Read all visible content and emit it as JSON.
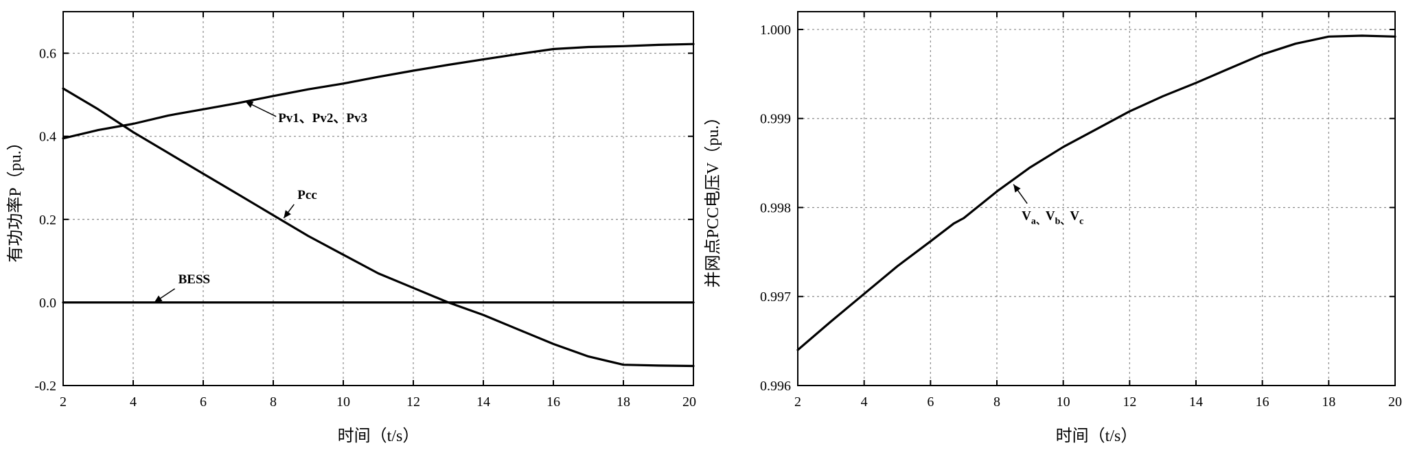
{
  "chart_data": [
    {
      "type": "line",
      "title": "",
      "xlabel": "时间（t/s）",
      "ylabel": "有功功率P（pu.）",
      "xlim": [
        2,
        20
      ],
      "ylim": [
        -0.2,
        0.7
      ],
      "xticks": [
        2,
        4,
        6,
        8,
        10,
        12,
        14,
        16,
        18,
        20
      ],
      "xtick_labels": [
        "2",
        "4",
        "6",
        "8",
        "10",
        "12",
        "14",
        "16",
        "18",
        "20"
      ],
      "yticks": [
        -0.2,
        0.0,
        0.2,
        0.4,
        0.6
      ],
      "ytick_labels": [
        "-0.2",
        "0.0",
        "0.2",
        "0.4",
        "0.6"
      ],
      "grid": true,
      "series": [
        {
          "name": "Pv1、Pv2、Pv3",
          "x": [
            2,
            3,
            4,
            5,
            6,
            7,
            8,
            9,
            10,
            11,
            12,
            13,
            14,
            15,
            16,
            17,
            18,
            19,
            20
          ],
          "y": [
            0.395,
            0.415,
            0.43,
            0.45,
            0.465,
            0.48,
            0.497,
            0.513,
            0.527,
            0.543,
            0.558,
            0.572,
            0.585,
            0.598,
            0.61,
            0.615,
            0.617,
            0.62,
            0.622
          ]
        },
        {
          "name": "Pcc",
          "x": [
            2,
            3,
            4,
            5,
            6,
            7,
            8,
            9,
            10,
            11,
            12,
            13,
            14,
            15,
            16,
            17,
            18,
            19,
            20
          ],
          "y": [
            0.515,
            0.465,
            0.41,
            0.36,
            0.31,
            0.26,
            0.21,
            0.16,
            0.115,
            0.07,
            0.035,
            0.0,
            -0.03,
            -0.065,
            -0.1,
            -0.13,
            -0.15,
            -0.152,
            -0.153
          ]
        },
        {
          "name": "BESS",
          "x": [
            2,
            20
          ],
          "y": [
            0.0,
            0.0
          ]
        }
      ],
      "annotations": [
        {
          "text": "Pv1、Pv2、Pv3",
          "points_to": [
            7.2,
            0.484
          ]
        },
        {
          "text": "Pcc",
          "points_to": [
            8.3,
            0.203
          ]
        },
        {
          "text": "BESS",
          "points_to": [
            4.6,
            0.0
          ]
        }
      ]
    },
    {
      "type": "line",
      "title": "",
      "xlabel": "时间（t/s）",
      "ylabel": "并网点PCC电压V（pu.）",
      "xlim": [
        2,
        20
      ],
      "ylim": [
        0.996,
        1.0002
      ],
      "xticks": [
        2,
        4,
        6,
        8,
        10,
        12,
        14,
        16,
        18,
        20
      ],
      "xtick_labels": [
        "2",
        "4",
        "6",
        "8",
        "10",
        "12",
        "14",
        "16",
        "18",
        "20"
      ],
      "yticks": [
        0.996,
        0.997,
        0.998,
        0.999,
        1.0
      ],
      "ytick_labels": [
        "0.996",
        "0.997",
        "0.998",
        "0.999",
        "1.000"
      ],
      "grid": true,
      "series": [
        {
          "name": "Va、Vb、Vc",
          "x": [
            2,
            3,
            4,
            5,
            6,
            6.7,
            7,
            8,
            9,
            10,
            11,
            12,
            13,
            14,
            15,
            16,
            17,
            18,
            19,
            20
          ],
          "y": [
            0.9964,
            0.99672,
            0.99703,
            0.99734,
            0.99762,
            0.99782,
            0.99788,
            0.99818,
            0.99845,
            0.99868,
            0.99888,
            0.99908,
            0.99925,
            0.9994,
            0.99956,
            0.99972,
            0.99984,
            0.99992,
            0.99993,
            0.99992
          ]
        }
      ],
      "annotations": [
        {
          "text": "V",
          "sub": [
            "a",
            "b",
            "c"
          ],
          "separator": "、",
          "points_to": [
            8.5,
            0.99826
          ]
        }
      ]
    }
  ]
}
